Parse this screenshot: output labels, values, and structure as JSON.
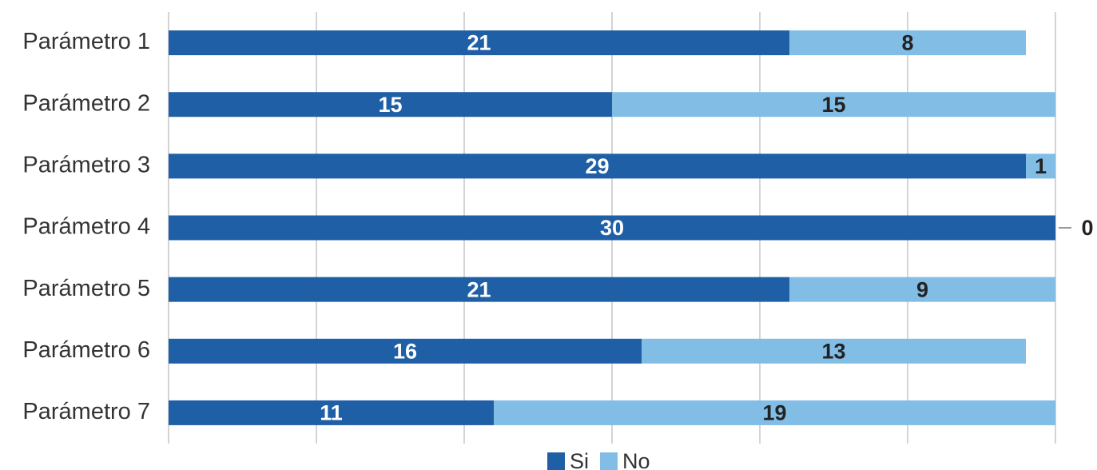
{
  "chart_data": {
    "type": "stacked_barh",
    "categories": [
      "Parámetro 1",
      "Parámetro 2",
      "Parámetro 3",
      "Parámetro 4",
      "Parámetro 5",
      "Parámetro 6",
      "Parámetro 7"
    ],
    "series": [
      {
        "name": "Si",
        "color": "#1f5fa6",
        "values": [
          21,
          15,
          29,
          30,
          21,
          16,
          11
        ]
      },
      {
        "name": "No",
        "color": "#82bde6",
        "values": [
          8,
          15,
          1,
          0,
          9,
          13,
          19
        ]
      }
    ],
    "xlim": [
      0,
      30
    ],
    "xticks": [
      0,
      5,
      10,
      15,
      20,
      25,
      30
    ],
    "grid": true
  }
}
